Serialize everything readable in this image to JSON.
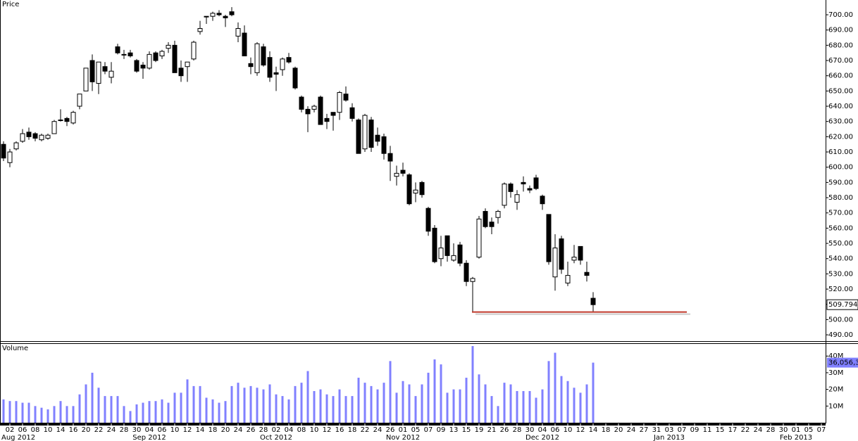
{
  "chart_data": {
    "type": "candlestick",
    "price_label": "Price",
    "volume_label": "Volume",
    "open": [
      615,
      603,
      612,
      617,
      623,
      622,
      618,
      619,
      622,
      631,
      632,
      629,
      640,
      650,
      670,
      655,
      666,
      659,
      679,
      674,
      675,
      670,
      667,
      665,
      675,
      673,
      678,
      680,
      665,
      666,
      671,
      689,
      699,
      699,
      701,
      699,
      702,
      686,
      688,
      668,
      662,
      679,
      672,
      662,
      664,
      672,
      665,
      646,
      638,
      638,
      646,
      632,
      636,
      636,
      648,
      639,
      631,
      612,
      631,
      621,
      620,
      609,
      594,
      598,
      595,
      583,
      590,
      573,
      560,
      540,
      555,
      539,
      549,
      537,
      525,
      541,
      571,
      564,
      567,
      575,
      589,
      577,
      590,
      586,
      593,
      581,
      569,
      528,
      553,
      524,
      539,
      548,
      531,
      514
    ],
    "high": [
      617,
      612,
      617,
      625,
      626,
      623,
      622,
      622,
      631,
      638,
      633,
      637,
      648,
      665,
      674,
      669,
      669,
      669,
      681,
      677,
      677,
      671,
      669,
      676,
      676,
      677,
      682,
      683,
      670,
      669,
      683,
      696,
      699,
      702,
      703,
      700,
      705,
      695,
      693,
      672,
      682,
      681,
      676,
      666,
      672,
      675,
      666,
      647,
      640,
      641,
      647,
      635,
      635,
      650,
      653,
      642,
      632,
      635,
      633,
      626,
      622,
      614,
      601,
      603,
      596,
      590,
      591,
      574,
      562,
      555,
      555,
      550,
      551,
      539,
      528,
      568,
      573,
      567,
      572,
      590,
      590,
      585,
      594,
      588,
      595,
      582,
      569,
      556,
      555,
      538,
      549,
      548,
      538,
      518
    ],
    "low": [
      604,
      600,
      611,
      616,
      618,
      617,
      617,
      618,
      622,
      630,
      627,
      628,
      638,
      650,
      650,
      648,
      661,
      655,
      674,
      671,
      672,
      662,
      658,
      664,
      669,
      671,
      675,
      662,
      656,
      656,
      670,
      687,
      694,
      696,
      699,
      692,
      699,
      682,
      673,
      661,
      660,
      666,
      656,
      650,
      660,
      668,
      651,
      636,
      623,
      636,
      628,
      625,
      624,
      631,
      643,
      630,
      609,
      610,
      610,
      614,
      605,
      591,
      588,
      594,
      575,
      577,
      580,
      555,
      537,
      535,
      538,
      538,
      535,
      522,
      505,
      540,
      560,
      556,
      563,
      573,
      580,
      572,
      584,
      583,
      585,
      572,
      536,
      519,
      530,
      522,
      537,
      536,
      525,
      505
    ],
    "close": [
      606,
      610,
      616,
      622,
      620,
      619,
      621,
      621,
      630,
      631,
      630,
      636,
      648,
      665,
      656,
      669,
      663,
      663,
      675,
      674,
      673,
      663,
      665,
      674,
      670,
      676,
      680,
      662,
      660,
      669,
      682,
      691,
      699,
      701,
      700,
      698,
      700,
      691,
      673,
      666,
      681,
      667,
      659,
      661,
      671,
      669,
      652,
      638,
      635,
      640,
      628,
      630,
      634,
      649,
      644,
      632,
      609,
      634,
      613,
      617,
      609,
      604,
      596,
      596,
      576,
      585,
      582,
      558,
      538,
      547,
      542,
      542,
      537,
      525,
      527,
      566,
      561,
      561,
      571,
      589,
      584,
      582,
      589,
      585,
      586,
      576,
      538,
      547,
      533,
      529,
      541,
      539,
      529,
      509.794
    ],
    "volume": [
      14,
      13,
      13,
      12,
      12,
      10,
      9,
      8,
      10,
      13,
      10,
      10,
      17,
      23,
      30,
      21,
      16,
      16,
      16,
      10,
      7,
      11,
      12,
      13,
      13,
      14,
      12,
      18,
      18,
      26,
      22,
      22,
      15,
      14,
      12,
      13,
      22,
      24,
      21,
      22,
      21,
      20,
      23,
      17,
      16,
      14,
      22,
      24,
      31,
      19,
      20,
      17,
      16,
      20,
      16,
      16,
      27,
      24,
      22,
      20,
      24,
      37,
      18,
      25,
      23,
      16,
      23,
      30,
      38,
      35,
      18,
      20,
      20,
      27,
      46,
      29,
      23,
      16,
      10,
      24,
      23,
      19,
      19,
      19,
      15,
      20,
      37,
      42,
      28,
      25,
      21,
      18,
      23,
      36.0563
    ],
    "volume_tag": "36,056,3",
    "support_line": 505,
    "ylim": [
      486.8,
      709.7
    ],
    "yticks": [
      {
        "value": 490,
        "label": "490.00"
      },
      {
        "value": 500,
        "label": "500.00"
      },
      {
        "value": 510,
        "label": "510.00"
      },
      {
        "value": 520,
        "label": "520.00"
      },
      {
        "value": 530,
        "label": "530.00"
      },
      {
        "value": 540,
        "label": "540.00"
      },
      {
        "value": 550,
        "label": "550.00"
      },
      {
        "value": 560,
        "label": "560.00"
      },
      {
        "value": 570,
        "label": "570.00"
      },
      {
        "value": 580,
        "label": "580.00"
      },
      {
        "value": 590,
        "label": "590.00"
      },
      {
        "value": 600,
        "label": "600.00"
      },
      {
        "value": 610,
        "label": "610.00"
      },
      {
        "value": 620,
        "label": "620.00"
      },
      {
        "value": 630,
        "label": "630.00"
      },
      {
        "value": 640,
        "label": "640.00"
      },
      {
        "value": 650,
        "label": "650.00"
      },
      {
        "value": 660,
        "label": "660.00"
      },
      {
        "value": 670,
        "label": "670.00"
      },
      {
        "value": 680,
        "label": "680.00"
      },
      {
        "value": 690,
        "label": "690.00"
      },
      {
        "value": 700,
        "label": "700.00"
      }
    ],
    "y2lim": [
      0,
      47.7
    ],
    "y2ticks": [
      {
        "value": 10,
        "label": "10M"
      },
      {
        "value": 20,
        "label": "20M"
      },
      {
        "value": 30,
        "label": "30M"
      },
      {
        "value": 40,
        "label": "40M"
      }
    ],
    "xticks": [
      {
        "label": "02",
        "month": "Aug 2012"
      },
      {
        "label": "06"
      },
      {
        "label": "08"
      },
      {
        "label": "10"
      },
      {
        "label": "14"
      },
      {
        "label": "16"
      },
      {
        "label": "20"
      },
      {
        "label": "22"
      },
      {
        "label": "24"
      },
      {
        "label": "28"
      },
      {
        "label": "30"
      },
      {
        "label": "04",
        "month": "Sep 2012"
      },
      {
        "label": "06"
      },
      {
        "label": "10"
      },
      {
        "label": "12"
      },
      {
        "label": "14"
      },
      {
        "label": "18"
      },
      {
        "label": "20"
      },
      {
        "label": "24"
      },
      {
        "label": "26"
      },
      {
        "label": "28"
      },
      {
        "label": "02",
        "month": "Oct 2012"
      },
      {
        "label": "04"
      },
      {
        "label": "08"
      },
      {
        "label": "10"
      },
      {
        "label": "12"
      },
      {
        "label": "16"
      },
      {
        "label": "18"
      },
      {
        "label": "22"
      },
      {
        "label": "24"
      },
      {
        "label": "26"
      },
      {
        "label": "01",
        "month": "Nov 2012"
      },
      {
        "label": "05"
      },
      {
        "label": "07"
      },
      {
        "label": "09"
      },
      {
        "label": "13"
      },
      {
        "label": "15"
      },
      {
        "label": "19"
      },
      {
        "label": "21"
      },
      {
        "label": "26"
      },
      {
        "label": "28"
      },
      {
        "label": "30"
      },
      {
        "label": "04",
        "month": "Dec 2012"
      },
      {
        "label": "06"
      },
      {
        "label": "10"
      },
      {
        "label": "12"
      },
      {
        "label": "14"
      },
      {
        "label": "18"
      },
      {
        "label": "20"
      },
      {
        "label": "24"
      },
      {
        "label": "27"
      },
      {
        "label": "31"
      },
      {
        "label": "03",
        "month": "Jan 2013"
      },
      {
        "label": "07"
      },
      {
        "label": "09"
      },
      {
        "label": "11"
      },
      {
        "label": "15"
      },
      {
        "label": "17"
      },
      {
        "label": "22"
      },
      {
        "label": "24"
      },
      {
        "label": "28"
      },
      {
        "label": "30"
      },
      {
        "label": "01",
        "month": "Feb 2013"
      },
      {
        "label": "05"
      },
      {
        "label": "07"
      }
    ],
    "up_color": "#ffffff",
    "down_color": "#000000",
    "volume_color": "#8080ff",
    "support_color": "#c0392b"
  }
}
